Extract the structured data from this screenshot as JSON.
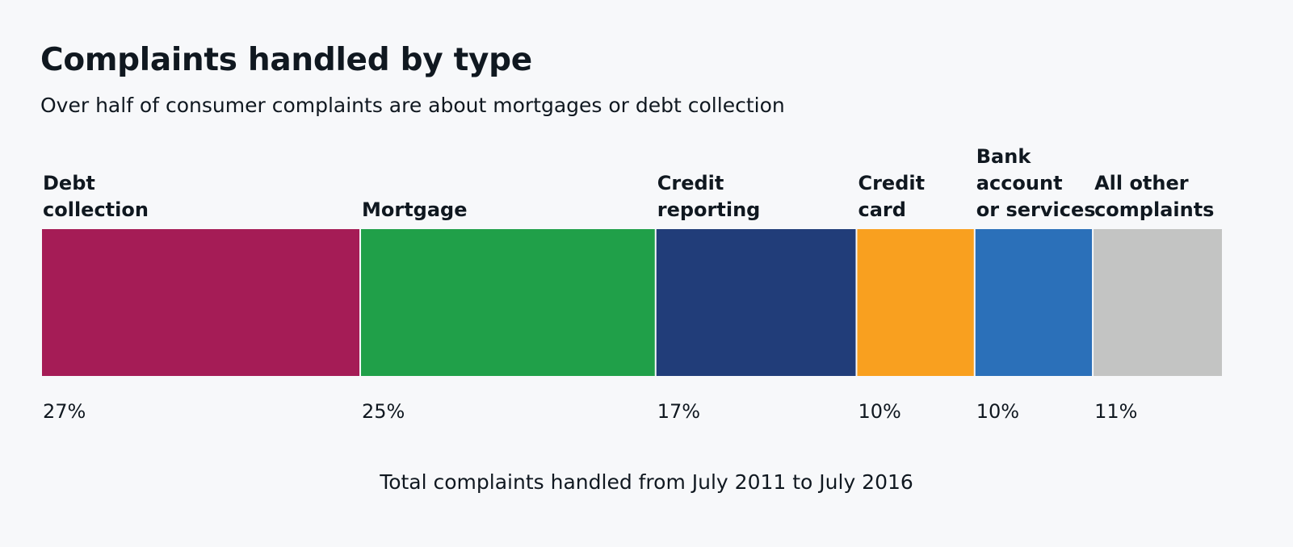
{
  "chart_data": {
    "type": "bar",
    "orientation": "stacked-horizontal",
    "title": "Complaints handled by type",
    "subtitle": "Over half of consumer complaints are about mortgages or debt collection",
    "note": "Total complaints handled from July 2011 to July 2016",
    "unit": "%",
    "categories": [
      "Debt collection",
      "Mortgage",
      "Credit reporting",
      "Credit card",
      "Bank account or services",
      "All other complaints"
    ],
    "label_lines": [
      [
        "Debt",
        "collection"
      ],
      [
        "Mortgage"
      ],
      [
        "Credit",
        "reporting"
      ],
      [
        "Credit",
        "card"
      ],
      [
        "Bank",
        "account",
        "or services"
      ],
      [
        "All other",
        "complaints"
      ]
    ],
    "values": [
      27,
      25,
      17,
      10,
      10,
      11
    ],
    "value_labels": [
      "27%",
      "25%",
      "17%",
      "10%",
      "10%",
      "11%"
    ],
    "colors": [
      "#a51c56",
      "#20a049",
      "#213d79",
      "#f9a01f",
      "#2b70b9",
      "#c3c4c3"
    ],
    "legend": "none",
    "grid": false
  }
}
